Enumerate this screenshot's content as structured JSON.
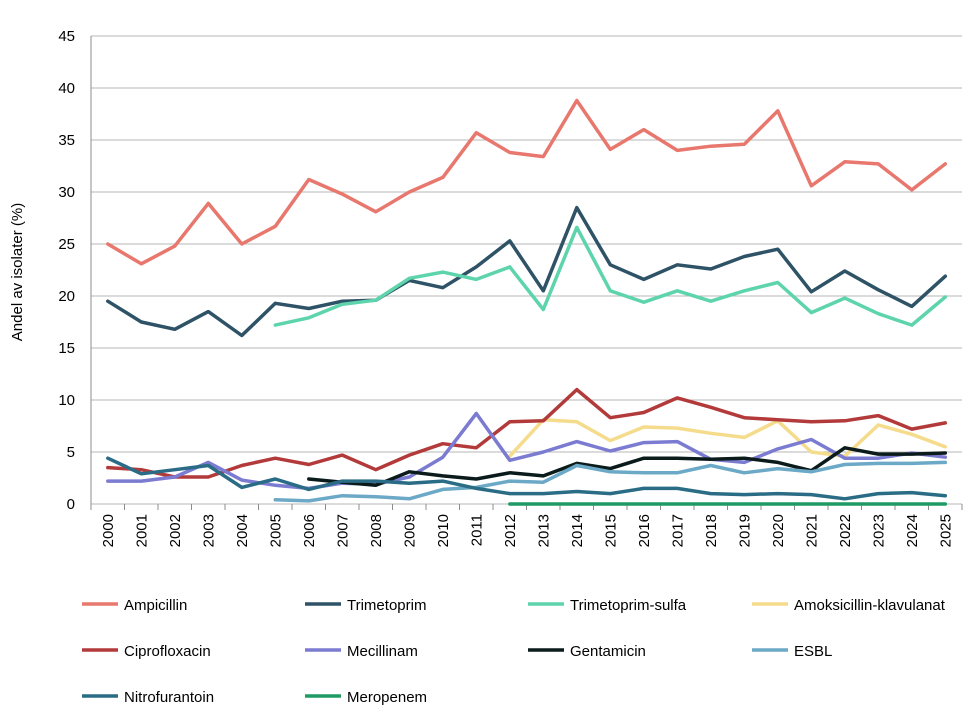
{
  "chart_data": {
    "type": "line",
    "ylabel": "Andel av isolater (%)",
    "xlabel": "",
    "ylim": [
      0,
      45
    ],
    "yticks": [
      0,
      5,
      10,
      15,
      20,
      25,
      30,
      35,
      40,
      45
    ],
    "grid": "horizontal",
    "legend_position": "bottom",
    "categories": [
      "2000",
      "2001",
      "2002",
      "2003",
      "2004",
      "2005",
      "2006",
      "2007",
      "2008",
      "2009",
      "2010",
      "2011",
      "2012",
      "2013",
      "2014",
      "2015",
      "2016",
      "2017",
      "2018",
      "2019",
      "2020",
      "2021",
      "2022",
      "2023",
      "2024",
      "2025"
    ],
    "series": [
      {
        "name": "Ampicillin",
        "color": "#E8776E",
        "values": [
          25.0,
          23.1,
          24.8,
          28.9,
          25.0,
          26.7,
          31.2,
          29.8,
          28.1,
          30.0,
          31.4,
          35.7,
          33.8,
          33.4,
          38.8,
          34.1,
          36.0,
          34.0,
          34.4,
          34.6,
          37.8,
          30.6,
          32.9,
          32.7,
          30.2,
          32.7
        ]
      },
      {
        "name": "Trimetoprim",
        "color": "#2E5266",
        "values": [
          19.5,
          17.5,
          16.8,
          18.5,
          16.2,
          19.3,
          18.8,
          19.5,
          19.6,
          21.5,
          20.8,
          22.8,
          25.3,
          20.5,
          28.5,
          23.0,
          21.6,
          23.0,
          22.6,
          23.8,
          24.5,
          20.4,
          22.4,
          20.6,
          19.0,
          21.9
        ]
      },
      {
        "name": "Trimetoprim-sulfa",
        "color": "#5ED4AC",
        "values": [
          null,
          null,
          null,
          null,
          null,
          17.2,
          17.9,
          19.2,
          19.6,
          21.7,
          22.3,
          21.6,
          22.8,
          18.7,
          26.6,
          20.5,
          19.4,
          20.5,
          19.5,
          20.5,
          21.3,
          18.4,
          19.8,
          18.3,
          17.2,
          19.9
        ]
      },
      {
        "name": "Amoksicillin-klavulanat",
        "color": "#F5DC8C",
        "values": [
          null,
          null,
          null,
          null,
          null,
          null,
          null,
          null,
          null,
          null,
          null,
          null,
          4.6,
          8.1,
          7.9,
          6.1,
          7.4,
          7.3,
          6.8,
          6.4,
          8.0,
          5.0,
          4.6,
          7.6,
          6.7,
          5.5
        ]
      },
      {
        "name": "Ciprofloxacin",
        "color": "#B33A3A",
        "values": [
          3.5,
          3.3,
          2.6,
          2.6,
          3.7,
          4.4,
          3.8,
          4.7,
          3.3,
          4.7,
          5.8,
          5.4,
          7.9,
          8.0,
          11.0,
          8.3,
          8.8,
          10.2,
          9.3,
          8.3,
          8.1,
          7.9,
          8.0,
          8.5,
          7.2,
          7.8
        ]
      },
      {
        "name": "Mecillinam",
        "color": "#7B7BD1",
        "values": [
          2.2,
          2.2,
          2.6,
          4.0,
          2.3,
          1.8,
          1.5,
          2.0,
          1.9,
          2.6,
          4.5,
          8.7,
          4.2,
          5.0,
          6.0,
          5.1,
          5.9,
          6.0,
          4.3,
          4.0,
          5.3,
          6.2,
          4.4,
          4.4,
          4.9,
          4.5
        ]
      },
      {
        "name": "Gentamicin",
        "color": "#0B1A1A",
        "values": [
          null,
          null,
          null,
          null,
          null,
          null,
          2.4,
          2.1,
          1.8,
          3.1,
          2.7,
          2.4,
          3.0,
          2.7,
          3.9,
          3.4,
          4.4,
          4.4,
          4.3,
          4.4,
          4.0,
          3.2,
          5.4,
          4.8,
          4.8,
          4.9
        ]
      },
      {
        "name": "ESBL",
        "color": "#6BA9C6",
        "values": [
          null,
          null,
          null,
          null,
          null,
          0.4,
          0.3,
          0.8,
          0.7,
          0.5,
          1.4,
          1.6,
          2.2,
          2.1,
          3.7,
          3.1,
          3.0,
          3.0,
          3.7,
          3.0,
          3.4,
          3.1,
          3.8,
          3.9,
          3.9,
          4.0
        ]
      },
      {
        "name": "Nitrofurantoin",
        "color": "#2A6C86",
        "values": [
          4.4,
          2.9,
          3.3,
          3.7,
          1.6,
          2.4,
          1.4,
          2.2,
          2.2,
          2.0,
          2.2,
          1.5,
          1.0,
          1.0,
          1.2,
          1.0,
          1.5,
          1.5,
          1.0,
          0.9,
          1.0,
          0.9,
          0.5,
          1.0,
          1.1,
          0.8
        ]
      },
      {
        "name": "Meropenem",
        "color": "#1E9A64",
        "values": [
          null,
          null,
          null,
          null,
          null,
          null,
          null,
          null,
          null,
          null,
          null,
          null,
          0.0,
          0.0,
          0.0,
          0.0,
          0.0,
          0.0,
          0.0,
          0.0,
          0.0,
          0.0,
          0.0,
          0.0,
          0.0,
          0.0
        ]
      }
    ]
  }
}
